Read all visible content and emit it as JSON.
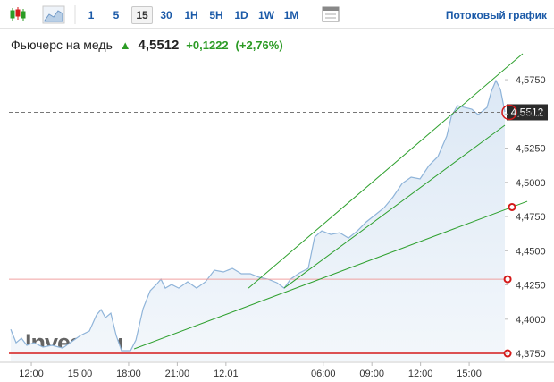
{
  "toolbar": {
    "intervals": [
      "1",
      "5",
      "15",
      "30",
      "1H",
      "5H",
      "1D",
      "1W",
      "1M"
    ],
    "selected": 2,
    "stream_link": "Потоковый график"
  },
  "header": {
    "name": "Фьючерс на медь",
    "price": "4,5512",
    "change": "+0,1222",
    "change_pct": "(+2,76%)"
  },
  "chart_data": {
    "type": "area",
    "color": "#8fb4d9",
    "fill": "#e8f0f8",
    "x": [
      -1.27,
      -0.94,
      -0.61,
      -0.28,
      0.17,
      0.72,
      1.27,
      1.93,
      2.48,
      3.03,
      3.58,
      4.02,
      4.3,
      4.57,
      4.9,
      5.23,
      5.56,
      6.12,
      6.45,
      6.89,
      7.33,
      7.71,
      7.99,
      8.26,
      8.65,
      9.09,
      9.64,
      10.19,
      10.74,
      11.29,
      11.85,
      12.4,
      12.95,
      13.5,
      14.05,
      14.6,
      15.15,
      15.59,
      15.98,
      16.53,
      17.08,
      17.47,
      17.91,
      18.46,
      19.01,
      19.56,
      20.11,
      20.66,
      21.21,
      21.76,
      22.31,
      22.87,
      23.42,
      23.97,
      24.52,
      25.07,
      25.62,
      25.9,
      26.28,
      26.72,
      27.16,
      27.55,
      28.1,
      28.37,
      28.65,
      28.93,
      29.2
    ],
    "values": [
      4.3926,
      4.3828,
      4.3861,
      4.3809,
      4.3828,
      4.3796,
      4.3809,
      4.3789,
      4.3835,
      4.3881,
      4.3913,
      4.4031,
      4.407,
      4.4011,
      4.4044,
      4.3881,
      4.377,
      4.377,
      4.3848,
      4.4077,
      4.4208,
      4.4253,
      4.4292,
      4.4227,
      4.4253,
      4.4227,
      4.4273,
      4.4227,
      4.4273,
      4.4358,
      4.4345,
      4.4371,
      4.4332,
      4.4332,
      4.4306,
      4.4292,
      4.4266,
      4.4227,
      4.4292,
      4.4338,
      4.4371,
      4.46,
      4.4645,
      4.4619,
      4.4632,
      4.4593,
      4.4645,
      4.4711,
      4.4763,
      4.4815,
      4.4894,
      4.4992,
      4.5038,
      4.5025,
      4.5123,
      4.5188,
      4.5338,
      4.5482,
      4.556,
      4.5547,
      4.5534,
      4.5495,
      4.5547,
      4.5665,
      4.5743,
      4.5678,
      4.5515
    ],
    "xlim": [
      -1.38,
      29.2
    ],
    "ylim": [
      4.3698,
      4.5842
    ],
    "xticks": [
      {
        "value": 0,
        "label": "12:00"
      },
      {
        "value": 3,
        "label": "15:00"
      },
      {
        "value": 6,
        "label": "18:00"
      },
      {
        "value": 9,
        "label": "21:00"
      },
      {
        "value": 12,
        "label": "12.01"
      },
      {
        "value": 18,
        "label": "06:00"
      },
      {
        "value": 21,
        "label": "09:00"
      },
      {
        "value": 24,
        "label": "12:00"
      },
      {
        "value": 27,
        "label": "15:00"
      }
    ],
    "yticks": [
      {
        "value": 4.375,
        "label": "4,3750"
      },
      {
        "value": 4.4,
        "label": "4,4000"
      },
      {
        "value": 4.425,
        "label": "4,4250"
      },
      {
        "value": 4.45,
        "label": "4,4500"
      },
      {
        "value": 4.475,
        "label": "4,4750"
      },
      {
        "value": 4.5,
        "label": "4,5000"
      },
      {
        "value": 4.525,
        "label": "4,5250"
      },
      {
        "value": 4.55,
        "label": "4,5500"
      },
      {
        "value": 4.575,
        "label": "4,5750"
      }
    ],
    "last_price": {
      "value": 4.5512,
      "label": "4,5512"
    },
    "trend_lines": [
      {
        "x": [
          13.39,
          30.3
        ],
        "y": [
          4.4227,
          4.594
        ],
        "color": "#2ea02e",
        "marker": false
      },
      {
        "x": [
          15.59,
          29.2
        ],
        "y": [
          4.4227,
          4.5417
        ],
        "color": "#2ea02e",
        "marker": false
      },
      {
        "x": [
          6.34,
          30.58
        ],
        "y": [
          4.3783,
          4.4861
        ],
        "color": "#2ea02e",
        "marker": true
      }
    ],
    "horizontal_lines": [
      {
        "y": 4.4292,
        "x": [
          -1.38,
          29.37
        ],
        "color": "#f0a0a0",
        "width": 1
      },
      {
        "y": 4.375,
        "x": [
          -1.38,
          29.37
        ],
        "color": "#d41a1a",
        "width": 1.5
      }
    ],
    "watermark": "Investing"
  }
}
